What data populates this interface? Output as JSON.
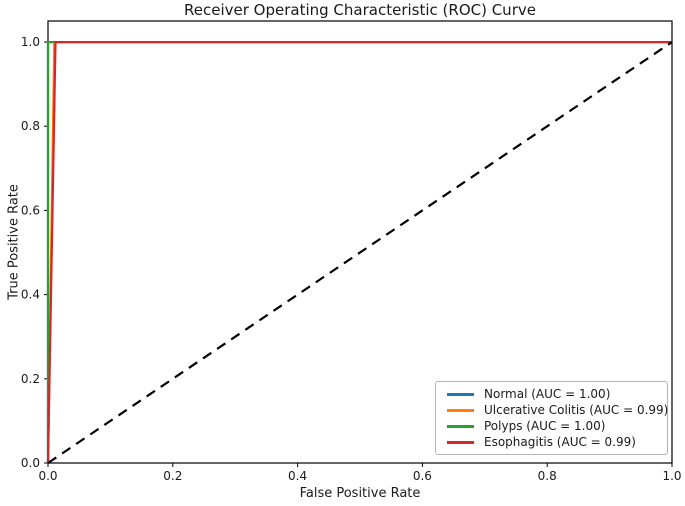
{
  "chart_data": {
    "type": "line",
    "title": "Receiver Operating Characteristic (ROC) Curve",
    "xlabel": "False Positive Rate",
    "ylabel": "True Positive Rate",
    "xlim": [
      0.0,
      1.0
    ],
    "ylim": [
      0.0,
      1.05
    ],
    "x_ticks": [
      "0.0",
      "0.2",
      "0.4",
      "0.6",
      "0.8",
      "1.0"
    ],
    "x_tick_values": [
      0.0,
      0.2,
      0.4,
      0.6,
      0.8,
      1.0
    ],
    "y_ticks": [
      "0.0",
      "0.2",
      "0.4",
      "0.6",
      "0.8",
      "1.0"
    ],
    "y_tick_values": [
      0.0,
      0.2,
      0.4,
      0.6,
      0.8,
      1.0
    ],
    "grid": false,
    "background": "#ffffff",
    "axis_color": "#000000",
    "legend_position": "lower right",
    "series": [
      {
        "name": "Normal",
        "auc": "1.00",
        "legend_label": "Normal (AUC = 1.00)",
        "color": "#1f77b4",
        "points": [
          [
            0.0,
            0.0
          ],
          [
            0.0,
            1.0
          ],
          [
            1.0,
            1.0
          ]
        ]
      },
      {
        "name": "Ulcerative Colitis",
        "auc": "0.99",
        "legend_label": "Ulcerative Colitis (AUC = 0.99)",
        "color": "#ff7f0e",
        "points": [
          [
            0.0,
            0.0
          ],
          [
            0.01,
            1.0
          ],
          [
            1.0,
            1.0
          ]
        ]
      },
      {
        "name": "Polyps",
        "auc": "1.00",
        "legend_label": "Polyps (AUC = 1.00)",
        "color": "#2ca02c",
        "points": [
          [
            0.0,
            0.0
          ],
          [
            0.0,
            1.0
          ],
          [
            1.0,
            1.0
          ]
        ]
      },
      {
        "name": "Esophagitis",
        "auc": "0.99",
        "legend_label": "Esophagitis (AUC = 0.99)",
        "color": "#d62728",
        "points": [
          [
            0.0,
            0.0
          ],
          [
            0.012,
            1.0
          ],
          [
            1.0,
            1.0
          ]
        ]
      }
    ],
    "reference_line": {
      "name": "chance-diagonal",
      "color": "#000000",
      "style": "dashed",
      "points": [
        [
          0.0,
          0.0
        ],
        [
          1.0,
          1.0
        ]
      ]
    }
  }
}
